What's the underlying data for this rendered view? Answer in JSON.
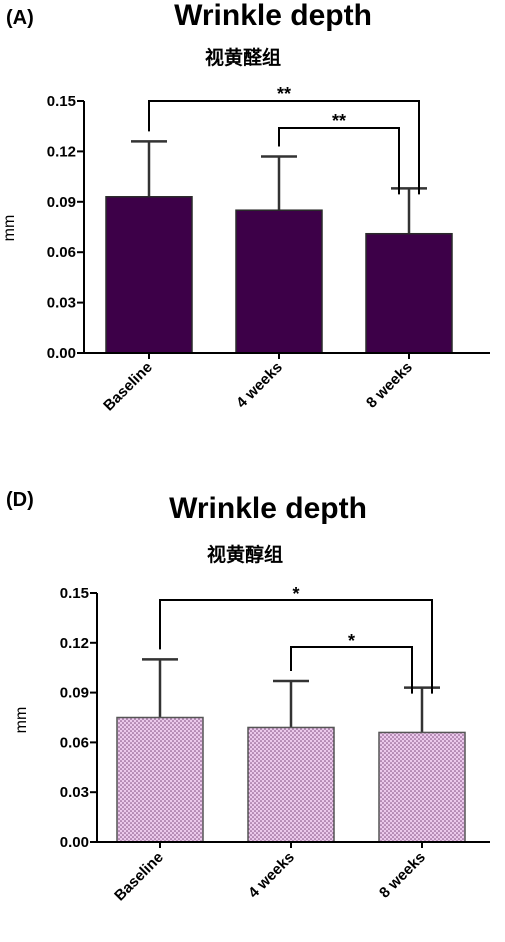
{
  "chart_data": [
    {
      "type": "bar",
      "panel_label": "(A)",
      "title": "Wrinkle depth",
      "subtitle": "视黄醛组",
      "ylabel": "mm",
      "xlabel": "",
      "categories": [
        "Baseline",
        "4 weeks",
        "8 weeks"
      ],
      "values": [
        0.093,
        0.085,
        0.071
      ],
      "error_upper": [
        0.033,
        0.032,
        0.027
      ],
      "ylim": [
        0,
        0.15
      ],
      "yticks": [
        "0.00",
        "0.03",
        "0.06",
        "0.09",
        "0.12",
        "0.15"
      ],
      "bar_color": "#3d0048",
      "bar_pattern": "solid",
      "significance": [
        {
          "from": 0,
          "to": 2,
          "label": "**"
        },
        {
          "from": 1,
          "to": 2,
          "label": "**"
        }
      ]
    },
    {
      "type": "bar",
      "panel_label": "(D)",
      "title": "Wrinkle depth",
      "subtitle": "视黄醇组",
      "ylabel": "mm",
      "xlabel": "",
      "categories": [
        "Baseline",
        "4 weeks",
        "8 weeks"
      ],
      "values": [
        0.075,
        0.069,
        0.066
      ],
      "error_upper": [
        0.035,
        0.028,
        0.027
      ],
      "ylim": [
        0,
        0.15
      ],
      "yticks": [
        "0.00",
        "0.03",
        "0.06",
        "0.09",
        "0.12",
        "0.15"
      ],
      "bar_color": "#e6bfe6",
      "bar_pattern": "dotted",
      "significance": [
        {
          "from": 0,
          "to": 2,
          "label": "*"
        },
        {
          "from": 1,
          "to": 2,
          "label": "*"
        }
      ]
    }
  ]
}
